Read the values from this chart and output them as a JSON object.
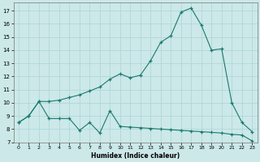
{
  "xlabel": "Humidex (Indice chaleur)",
  "bg_color": "#cce8e8",
  "line_color": "#1a7a6e",
  "grid_color": "#aad4d4",
  "xlim": [
    -0.5,
    23.5
  ],
  "ylim": [
    7,
    17.6
  ],
  "yticks": [
    7,
    8,
    9,
    10,
    11,
    12,
    13,
    14,
    15,
    16,
    17
  ],
  "xticks": [
    0,
    1,
    2,
    3,
    4,
    5,
    6,
    7,
    8,
    9,
    10,
    11,
    12,
    13,
    14,
    15,
    16,
    17,
    18,
    19,
    20,
    21,
    22,
    23
  ],
  "line1_x": [
    0,
    1,
    2,
    3,
    4,
    5,
    6,
    7,
    8,
    9,
    10,
    11,
    12,
    13,
    14,
    15,
    16,
    17,
    18,
    19,
    20,
    21,
    22,
    23
  ],
  "line1_y": [
    8.5,
    9.0,
    10.1,
    8.8,
    8.8,
    8.8,
    7.9,
    8.5,
    7.7,
    9.4,
    8.2,
    8.15,
    8.1,
    8.05,
    8.0,
    7.95,
    7.9,
    7.85,
    7.8,
    7.75,
    7.7,
    7.6,
    7.55,
    7.1
  ],
  "line2_x": [
    0,
    1,
    2,
    3,
    4,
    5,
    6,
    7,
    8,
    9,
    10,
    11,
    12,
    13,
    14,
    15,
    16,
    17,
    18,
    19,
    20,
    21,
    22,
    23
  ],
  "line2_y": [
    8.5,
    9.0,
    10.1,
    10.1,
    10.2,
    10.4,
    10.6,
    10.9,
    11.2,
    11.8,
    12.2,
    11.9,
    12.1,
    13.2,
    14.6,
    15.1,
    16.9,
    17.2,
    15.9,
    14.0,
    14.1,
    10.0,
    8.5,
    7.8
  ]
}
